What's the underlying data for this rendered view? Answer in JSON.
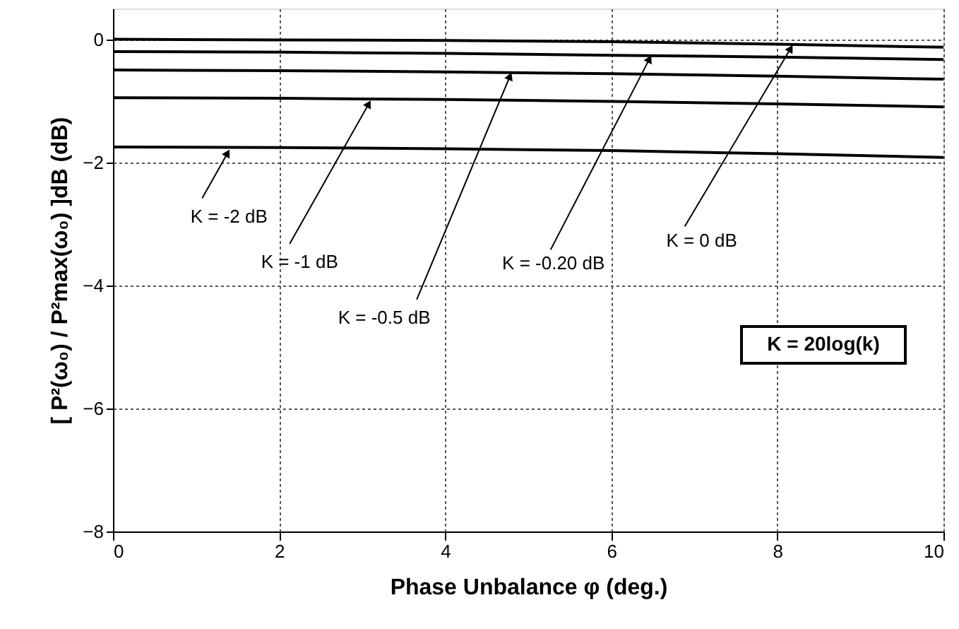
{
  "chart_data": {
    "type": "line",
    "xlabel": "Phase Unbalance φ (deg.)",
    "ylabel": "[ P²(ω₀) / P²max(ω₀) ]dB (dB)",
    "x": [
      0,
      2,
      4,
      6,
      8,
      10
    ],
    "series": [
      {
        "color": "#000000",
        "values": [
          0,
          -0.01,
          -0.02,
          -0.04,
          -0.08,
          -0.13
        ]
      },
      {
        "color": "#000000",
        "values": [
          -0.2,
          -0.21,
          -0.23,
          -0.26,
          -0.29,
          -0.33
        ]
      },
      {
        "color": "#000000",
        "values": [
          -0.5,
          -0.51,
          -0.53,
          -0.56,
          -0.6,
          -0.65
        ]
      },
      {
        "color": "#000000",
        "values": [
          -0.95,
          -0.96,
          -0.98,
          -1.01,
          -1.05,
          -1.1
        ]
      },
      {
        "color": "#000000",
        "values": [
          -1.75,
          -1.76,
          -1.78,
          -1.81,
          -1.86,
          -1.92
        ]
      }
    ],
    "xlim": [
      0,
      10
    ],
    "xticks": [
      0,
      2,
      4,
      6,
      8,
      10
    ],
    "ylim": [
      -8,
      0.5
    ],
    "yticks": [
      -8,
      -6,
      -4,
      -2,
      0
    ],
    "grid": true,
    "marker": "none",
    "line_style": "solid",
    "annotations": [
      {
        "text": "K = -2 dB",
        "x": 1.38,
        "y": -1.85
      },
      {
        "text": "K = -1 dB",
        "x": 3.08,
        "y": -1.05
      },
      {
        "text": "K = -0.5 dB",
        "x": 4.78,
        "y": -0.6
      },
      {
        "text": "K = -0.20 dB",
        "x": 6.46,
        "y": -0.32
      },
      {
        "text": "K = 0 dB",
        "x": 8.16,
        "y": -0.15
      },
      "K = 20log(k)"
    ]
  }
}
